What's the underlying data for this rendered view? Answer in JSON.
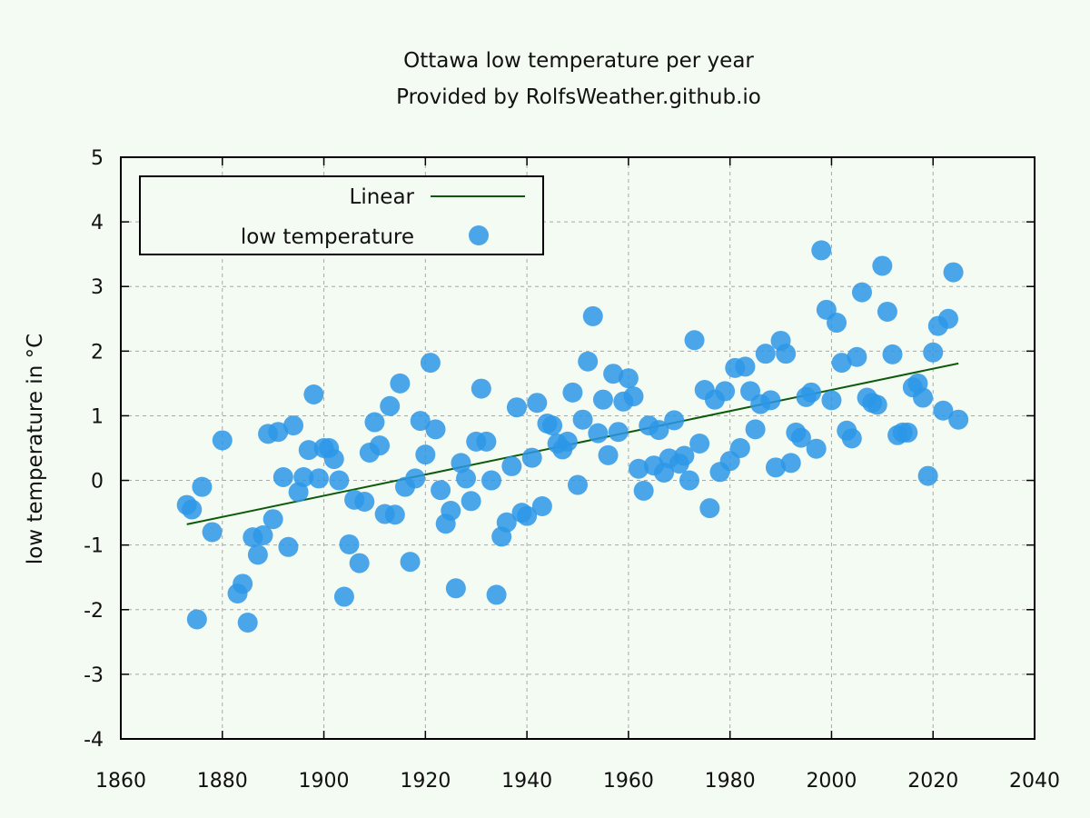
{
  "chart_data": {
    "type": "scatter",
    "title": "Ottawa low temperature per year",
    "subtitle": "Provided by RolfsWeather.github.io",
    "xlabel": "",
    "ylabel": "low temperature in °C",
    "xlim": [
      1860,
      2040
    ],
    "ylim": [
      -4,
      5
    ],
    "xticks": [
      "1860",
      "1880",
      "1900",
      "1920",
      "1940",
      "1960",
      "1980",
      "2000",
      "2020",
      "2040"
    ],
    "yticks": [
      "-4",
      "-3",
      "-2",
      "-1",
      "0",
      "1",
      "2",
      "3",
      "4",
      "5"
    ],
    "grid": true,
    "legend_position": "top-left",
    "colors": {
      "points": "#2b96e8",
      "trend": "#0d5a0d",
      "background": "#f4fbf2"
    },
    "series": [
      {
        "name": "low temperature",
        "kind": "points",
        "x": [
          1873,
          1874,
          1875,
          1876,
          1878,
          1880,
          1883,
          1884,
          1885,
          1886,
          1887,
          1888,
          1889,
          1890,
          1891,
          1892,
          1893,
          1894,
          1895,
          1896,
          1897,
          1898,
          1899,
          1900,
          1901,
          1902,
          1903,
          1904,
          1905,
          1906,
          1907,
          1908,
          1909,
          1910,
          1911,
          1912,
          1913,
          1914,
          1915,
          1916,
          1917,
          1918,
          1919,
          1920,
          1921,
          1922,
          1923,
          1924,
          1925,
          1926,
          1927,
          1928,
          1929,
          1930,
          1931,
          1932,
          1933,
          1934,
          1935,
          1936,
          1937,
          1938,
          1939,
          1940,
          1941,
          1942,
          1943,
          1944,
          1945,
          1946,
          1947,
          1948,
          1949,
          1950,
          1951,
          1952,
          1953,
          1954,
          1955,
          1956,
          1957,
          1958,
          1959,
          1960,
          1961,
          1962,
          1963,
          1964,
          1965,
          1966,
          1967,
          1968,
          1969,
          1970,
          1971,
          1972,
          1973,
          1974,
          1975,
          1976,
          1977,
          1978,
          1979,
          1980,
          1981,
          1982,
          1983,
          1984,
          1985,
          1986,
          1987,
          1988,
          1989,
          1990,
          1991,
          1992,
          1993,
          1994,
          1995,
          1996,
          1997,
          1998,
          1999,
          2000,
          2001,
          2002,
          2003,
          2004,
          2005,
          2006,
          2007,
          2008,
          2009,
          2010,
          2011,
          2012,
          2013,
          2014,
          2015,
          2016,
          2017,
          2018,
          2019,
          2020,
          2021,
          2022,
          2023,
          2024,
          2025
        ],
        "y": [
          -0.38,
          -0.45,
          -2.15,
          -0.1,
          -0.8,
          0.62,
          -1.75,
          -1.6,
          -2.2,
          -0.88,
          -1.15,
          -0.85,
          0.72,
          -0.6,
          0.75,
          0.05,
          -1.03,
          0.85,
          -0.18,
          0.05,
          0.47,
          1.33,
          0.03,
          0.5,
          0.5,
          0.33,
          0.0,
          -1.8,
          -0.99,
          -0.3,
          -1.28,
          -0.33,
          0.43,
          0.9,
          0.54,
          -0.52,
          1.15,
          -0.53,
          1.5,
          -0.1,
          -1.26,
          0.03,
          0.92,
          0.4,
          1.82,
          0.79,
          -0.15,
          -0.67,
          -0.47,
          -1.67,
          0.27,
          0.03,
          -0.32,
          0.6,
          1.42,
          0.6,
          0.0,
          -1.77,
          -0.87,
          -0.65,
          0.22,
          1.13,
          -0.5,
          -0.55,
          0.35,
          1.2,
          -0.4,
          0.88,
          0.85,
          0.57,
          0.48,
          0.6,
          1.36,
          -0.07,
          0.94,
          1.84,
          2.54,
          0.73,
          1.25,
          0.39,
          1.65,
          0.75,
          1.22,
          1.58,
          1.3,
          0.18,
          -0.16,
          0.85,
          0.23,
          0.78,
          0.12,
          0.34,
          0.93,
          0.26,
          0.38,
          0.0,
          2.17,
          0.57,
          1.4,
          -0.43,
          1.25,
          0.13,
          1.38,
          0.3,
          1.74,
          0.5,
          1.76,
          1.38,
          0.79,
          1.18,
          1.96,
          1.24,
          0.2,
          2.16,
          1.96,
          0.27,
          0.74,
          0.66,
          1.29,
          1.36,
          0.49,
          3.56,
          2.64,
          1.24,
          2.44,
          1.82,
          0.77,
          0.65,
          1.91,
          2.91,
          1.28,
          1.2,
          1.17,
          3.32,
          2.61,
          1.95,
          0.7,
          0.74,
          0.74,
          1.44,
          1.5,
          1.28,
          0.07,
          1.98,
          2.39,
          1.08,
          2.5,
          3.22,
          0.94
        ]
      },
      {
        "name": "Linear",
        "kind": "line",
        "x": [
          1873,
          2025
        ],
        "y": [
          -0.68,
          1.81
        ]
      }
    ]
  }
}
